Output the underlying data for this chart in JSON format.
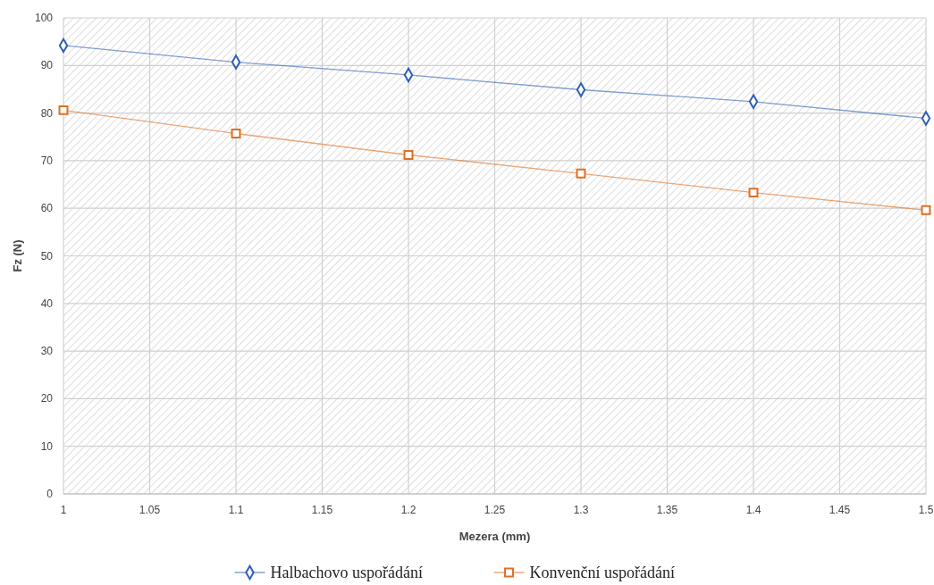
{
  "chart_data": {
    "type": "line",
    "xlabel": "Mezera (mm)",
    "ylabel": "Fz (N)",
    "x": [
      1,
      1.1,
      1.2,
      1.3,
      1.4,
      1.5
    ],
    "series": [
      {
        "name": "Halbachovo uspořádání",
        "color": "#2f5fb3",
        "marker": "diamond",
        "values": [
          94.2,
          90.7,
          88.0,
          84.9,
          82.4,
          78.9
        ]
      },
      {
        "name": "Konvenční uspořádání",
        "color": "#e07020",
        "marker": "square",
        "values": [
          80.6,
          75.7,
          71.2,
          67.3,
          63.3,
          59.6
        ]
      }
    ],
    "xlim": [
      1,
      1.5
    ],
    "xticks": [
      1,
      1.05,
      1.1,
      1.15,
      1.2,
      1.25,
      1.3,
      1.35,
      1.4,
      1.45,
      1.5
    ],
    "ylim": [
      0,
      100
    ],
    "yticks": [
      0,
      10,
      20,
      30,
      40,
      50,
      60,
      70,
      80,
      90,
      100
    ],
    "grid": true,
    "legend": "bottom",
    "line_style": "solid"
  }
}
